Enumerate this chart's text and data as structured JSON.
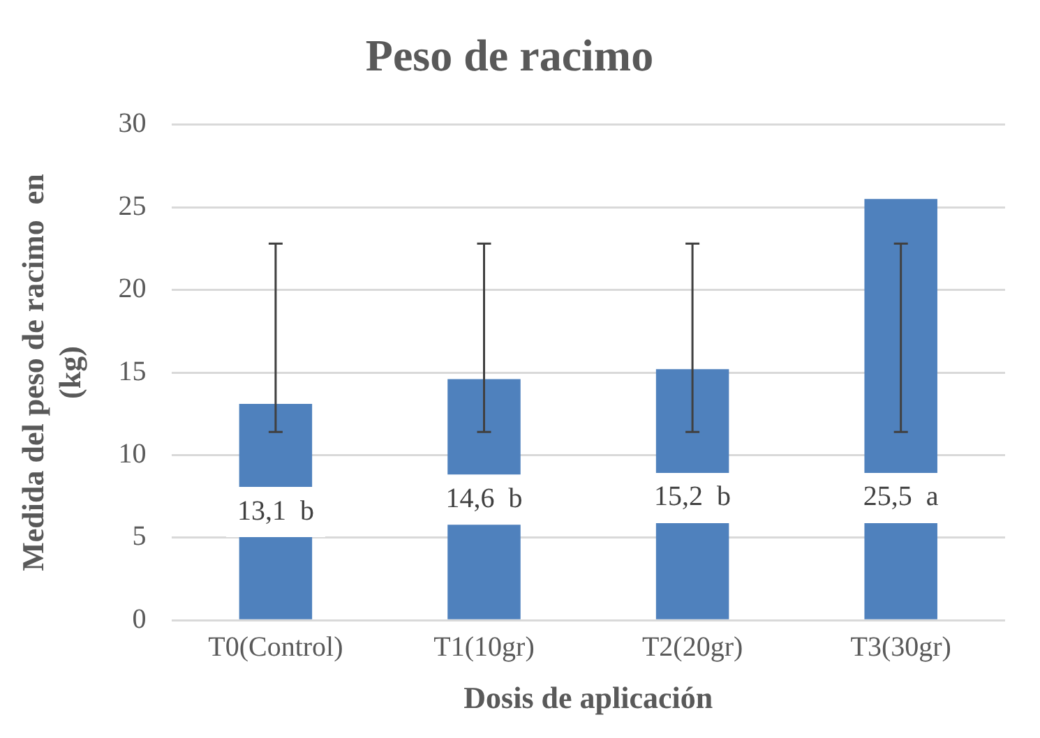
{
  "chart_data": {
    "type": "bar",
    "title": "Peso de racimo",
    "xlabel": "Dosis de aplicación",
    "ylabel": "Medida del peso de racimo  en (kg)",
    "categories": [
      "T0(Control)",
      "T1(10gr)",
      "T2(20gr)",
      "T3(30gr)"
    ],
    "values": [
      13.1,
      14.6,
      15.2,
      25.5
    ],
    "errors": [
      [
        11.4,
        22.8
      ],
      [
        11.4,
        22.8
      ],
      [
        11.4,
        22.8
      ],
      [
        11.4,
        22.8
      ]
    ],
    "value_labels": [
      "13,1  b",
      "14,6  b",
      "15,2  b",
      "25,5  a"
    ],
    "color": "#4f81bd",
    "ylim": [
      0,
      30
    ],
    "yticks": [
      0,
      5,
      10,
      15,
      20,
      25,
      30
    ],
    "grid": "y",
    "legend": false
  }
}
